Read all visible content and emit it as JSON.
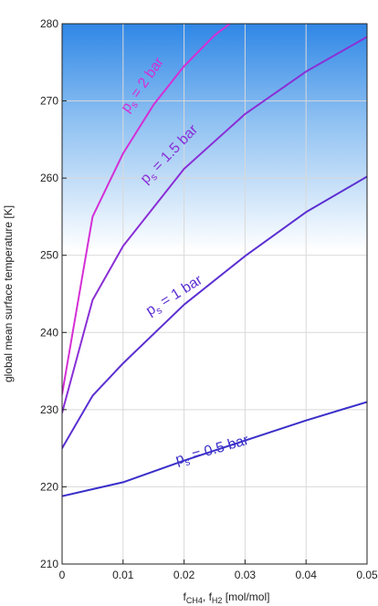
{
  "chart_data": {
    "type": "line",
    "xlabel": {
      "main": "f",
      "sub1": "CH4",
      "sep": ", f",
      "sub2": "H2",
      "unit": " [mol/mol]"
    },
    "ylabel": "global mean surface temperature [K]",
    "xlim": [
      0,
      0.05
    ],
    "ylim": [
      210,
      280
    ],
    "xticks": [
      0,
      0.01,
      0.02,
      0.03,
      0.04,
      0.05
    ],
    "xtick_labels": [
      "0",
      "0.01",
      "0.02",
      "0.03",
      "0.04",
      "0.05"
    ],
    "yticks": [
      210,
      220,
      230,
      240,
      250,
      260,
      270,
      280
    ],
    "ytick_labels": [
      "210",
      "220",
      "230",
      "240",
      "250",
      "260",
      "270",
      "280"
    ],
    "grid": true,
    "background": "gradient: blue at top fading to white",
    "series": [
      {
        "name": "Ps = 0.5 bar",
        "label": {
          "main": "p",
          "sub": "s",
          "rest": " = 0.5 bar"
        },
        "color": "#3a2fc9",
        "x": [
          0,
          0.005,
          0.01,
          0.02,
          0.03,
          0.04,
          0.05
        ],
        "y": [
          218.8,
          219.7,
          220.6,
          223.4,
          226.0,
          228.6,
          231.0
        ]
      },
      {
        "name": "Ps = 1 bar",
        "label": {
          "main": "p",
          "sub": "s",
          "rest": " = 1 bar"
        },
        "color": "#5b2fd1",
        "x": [
          0,
          0.005,
          0.01,
          0.02,
          0.03,
          0.04,
          0.05
        ],
        "y": [
          225.0,
          231.8,
          236.0,
          243.6,
          249.9,
          255.6,
          260.2
        ]
      },
      {
        "name": "Ps = 1.5 bar",
        "label": {
          "main": "p",
          "sub": "s",
          "rest": " = 1.5 bar"
        },
        "color": "#8a2fd6",
        "x": [
          0,
          0.005,
          0.01,
          0.02,
          0.03,
          0.04,
          0.05
        ],
        "y": [
          229.6,
          244.2,
          251.2,
          261.2,
          268.3,
          273.8,
          278.3
        ]
      },
      {
        "name": "Ps = 2 bar",
        "label": {
          "main": "p",
          "sub": "s",
          "rest": " = 2 bar"
        },
        "color": "#d42fd6",
        "x": [
          0,
          0.005,
          0.01,
          0.015,
          0.02,
          0.025,
          0.0275
        ],
        "y": [
          232.0,
          255.0,
          263.2,
          269.5,
          274.5,
          278.5,
          280.0
        ]
      }
    ]
  }
}
